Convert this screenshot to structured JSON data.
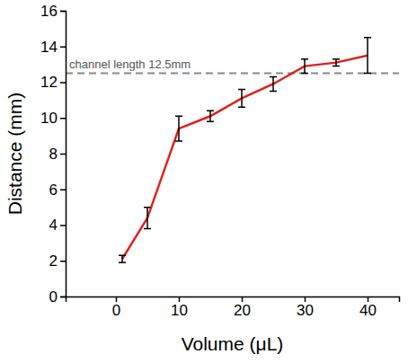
{
  "chart_data": {
    "type": "line",
    "x_label": "Volume (μL)",
    "y_label": "Distance (mm)",
    "x": [
      1,
      5,
      10,
      15,
      20,
      25,
      30,
      35,
      40
    ],
    "series": [
      {
        "color": "#e0201c",
        "values": [
          2.1,
          4.4,
          9.4,
          10.1,
          11.1,
          11.9,
          12.9,
          13.1,
          13.5
        ],
        "errors": [
          0.2,
          0.6,
          0.7,
          0.3,
          0.5,
          0.4,
          0.4,
          0.2,
          1.0
        ]
      }
    ],
    "annotations": [
      {
        "text": "channel length 12.5mm",
        "y": 12.5
      }
    ],
    "xlim": [
      -8,
      45
    ],
    "xticks": [
      0,
      10,
      20,
      30,
      40
    ],
    "ylim": [
      0,
      16
    ],
    "yticks": [
      0,
      2,
      4,
      6,
      8,
      10,
      12,
      14,
      16
    ],
    "grid": false
  }
}
